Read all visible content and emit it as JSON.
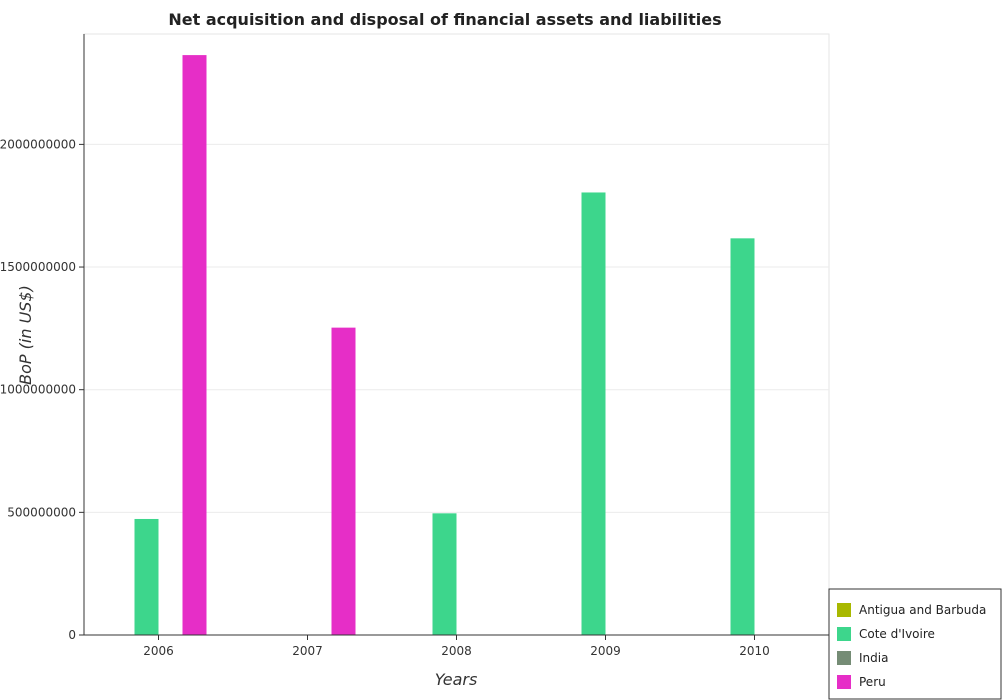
{
  "chart_data": {
    "type": "bar",
    "title": "Net acquisition and disposal of financial assets and liabilities",
    "xlabel": "Years",
    "ylabel": "BoP (in US$)",
    "categories": [
      "2006",
      "2007",
      "2008",
      "2009",
      "2010"
    ],
    "ylim": [
      0,
      2450000000
    ],
    "yticks": [
      0,
      500000000,
      1000000000,
      1500000000,
      2000000000
    ],
    "ytick_labels": [
      "0",
      "500000000",
      "1000000000",
      "1500000000",
      "2000000000"
    ],
    "grid": true,
    "legend_position": "bottom-right",
    "series": [
      {
        "name": "Antigua and Barbuda",
        "color": "#a8b800",
        "values": [
          0,
          0,
          0,
          0,
          0
        ]
      },
      {
        "name": "Cote d'Ivoire",
        "color": "#3dd68c",
        "values": [
          473000000,
          0,
          496000000,
          1804000000,
          1617000000
        ]
      },
      {
        "name": "India",
        "color": "#758c75",
        "values": [
          0,
          0,
          0,
          0,
          0
        ]
      },
      {
        "name": "Peru",
        "color": "#e62ec7",
        "values": [
          2364000000,
          1253000000,
          0,
          0,
          0
        ]
      }
    ]
  }
}
